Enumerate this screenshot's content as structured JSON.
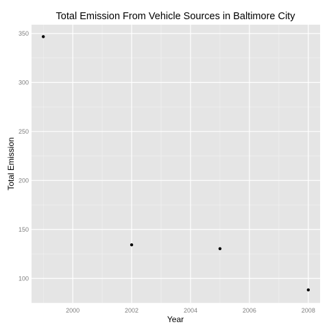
{
  "chart_data": {
    "type": "scatter",
    "title": "Total Emission From Vehicle Sources in Baltimore City",
    "xlabel": "Year",
    "ylabel": "Total Emission",
    "x": [
      1999,
      2002,
      2005,
      2008
    ],
    "y": [
      346.8,
      134.3,
      130.4,
      88.3
    ],
    "xlim": [
      1998.6,
      2008.4
    ],
    "ylim": [
      75,
      359
    ],
    "xticks": [
      2000,
      2002,
      2004,
      2006,
      2008
    ],
    "yticks": [
      100,
      150,
      200,
      250,
      300,
      350
    ],
    "grid": true,
    "colors": {
      "panel_background": "#e5e5e5",
      "grid_major": "#ffffff",
      "grid_minor": "#f2f2f2",
      "point": "#000000",
      "tick_text": "#7f7f7f"
    }
  }
}
